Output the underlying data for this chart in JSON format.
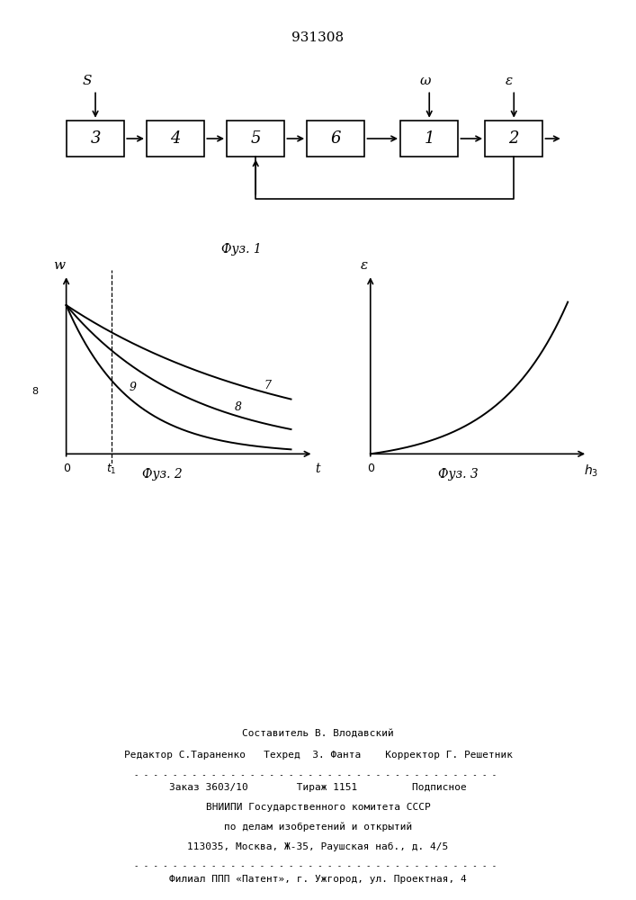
{
  "title": "931308",
  "bg_color": "#ffffff",
  "block_labels": [
    "3",
    "4",
    "5",
    "6",
    "1",
    "2"
  ],
  "fig1_caption": "Фуз. 1",
  "fig2_caption": "Фуз. 2",
  "fig3_caption": "Фуз. 3",
  "footer_line1": "Составитель В. Влодавский",
  "footer_line2": "Редактор С.Тараненко   Техред  З. Фанта    Корректор Г. Решетник",
  "footer_line3": "Заказ 3603/10        Тираж 1151         Подписное",
  "footer_line4": "ВНИИПИ Государственного комитета СССР",
  "footer_line5": "по делам изобретений и открытий",
  "footer_line6": "113035, Москва, Ж-35, Раушская наб., д. 4/5",
  "footer_line7": "Филиал ППП «Патент», г. Ужгород, ул. Проектная, 4"
}
